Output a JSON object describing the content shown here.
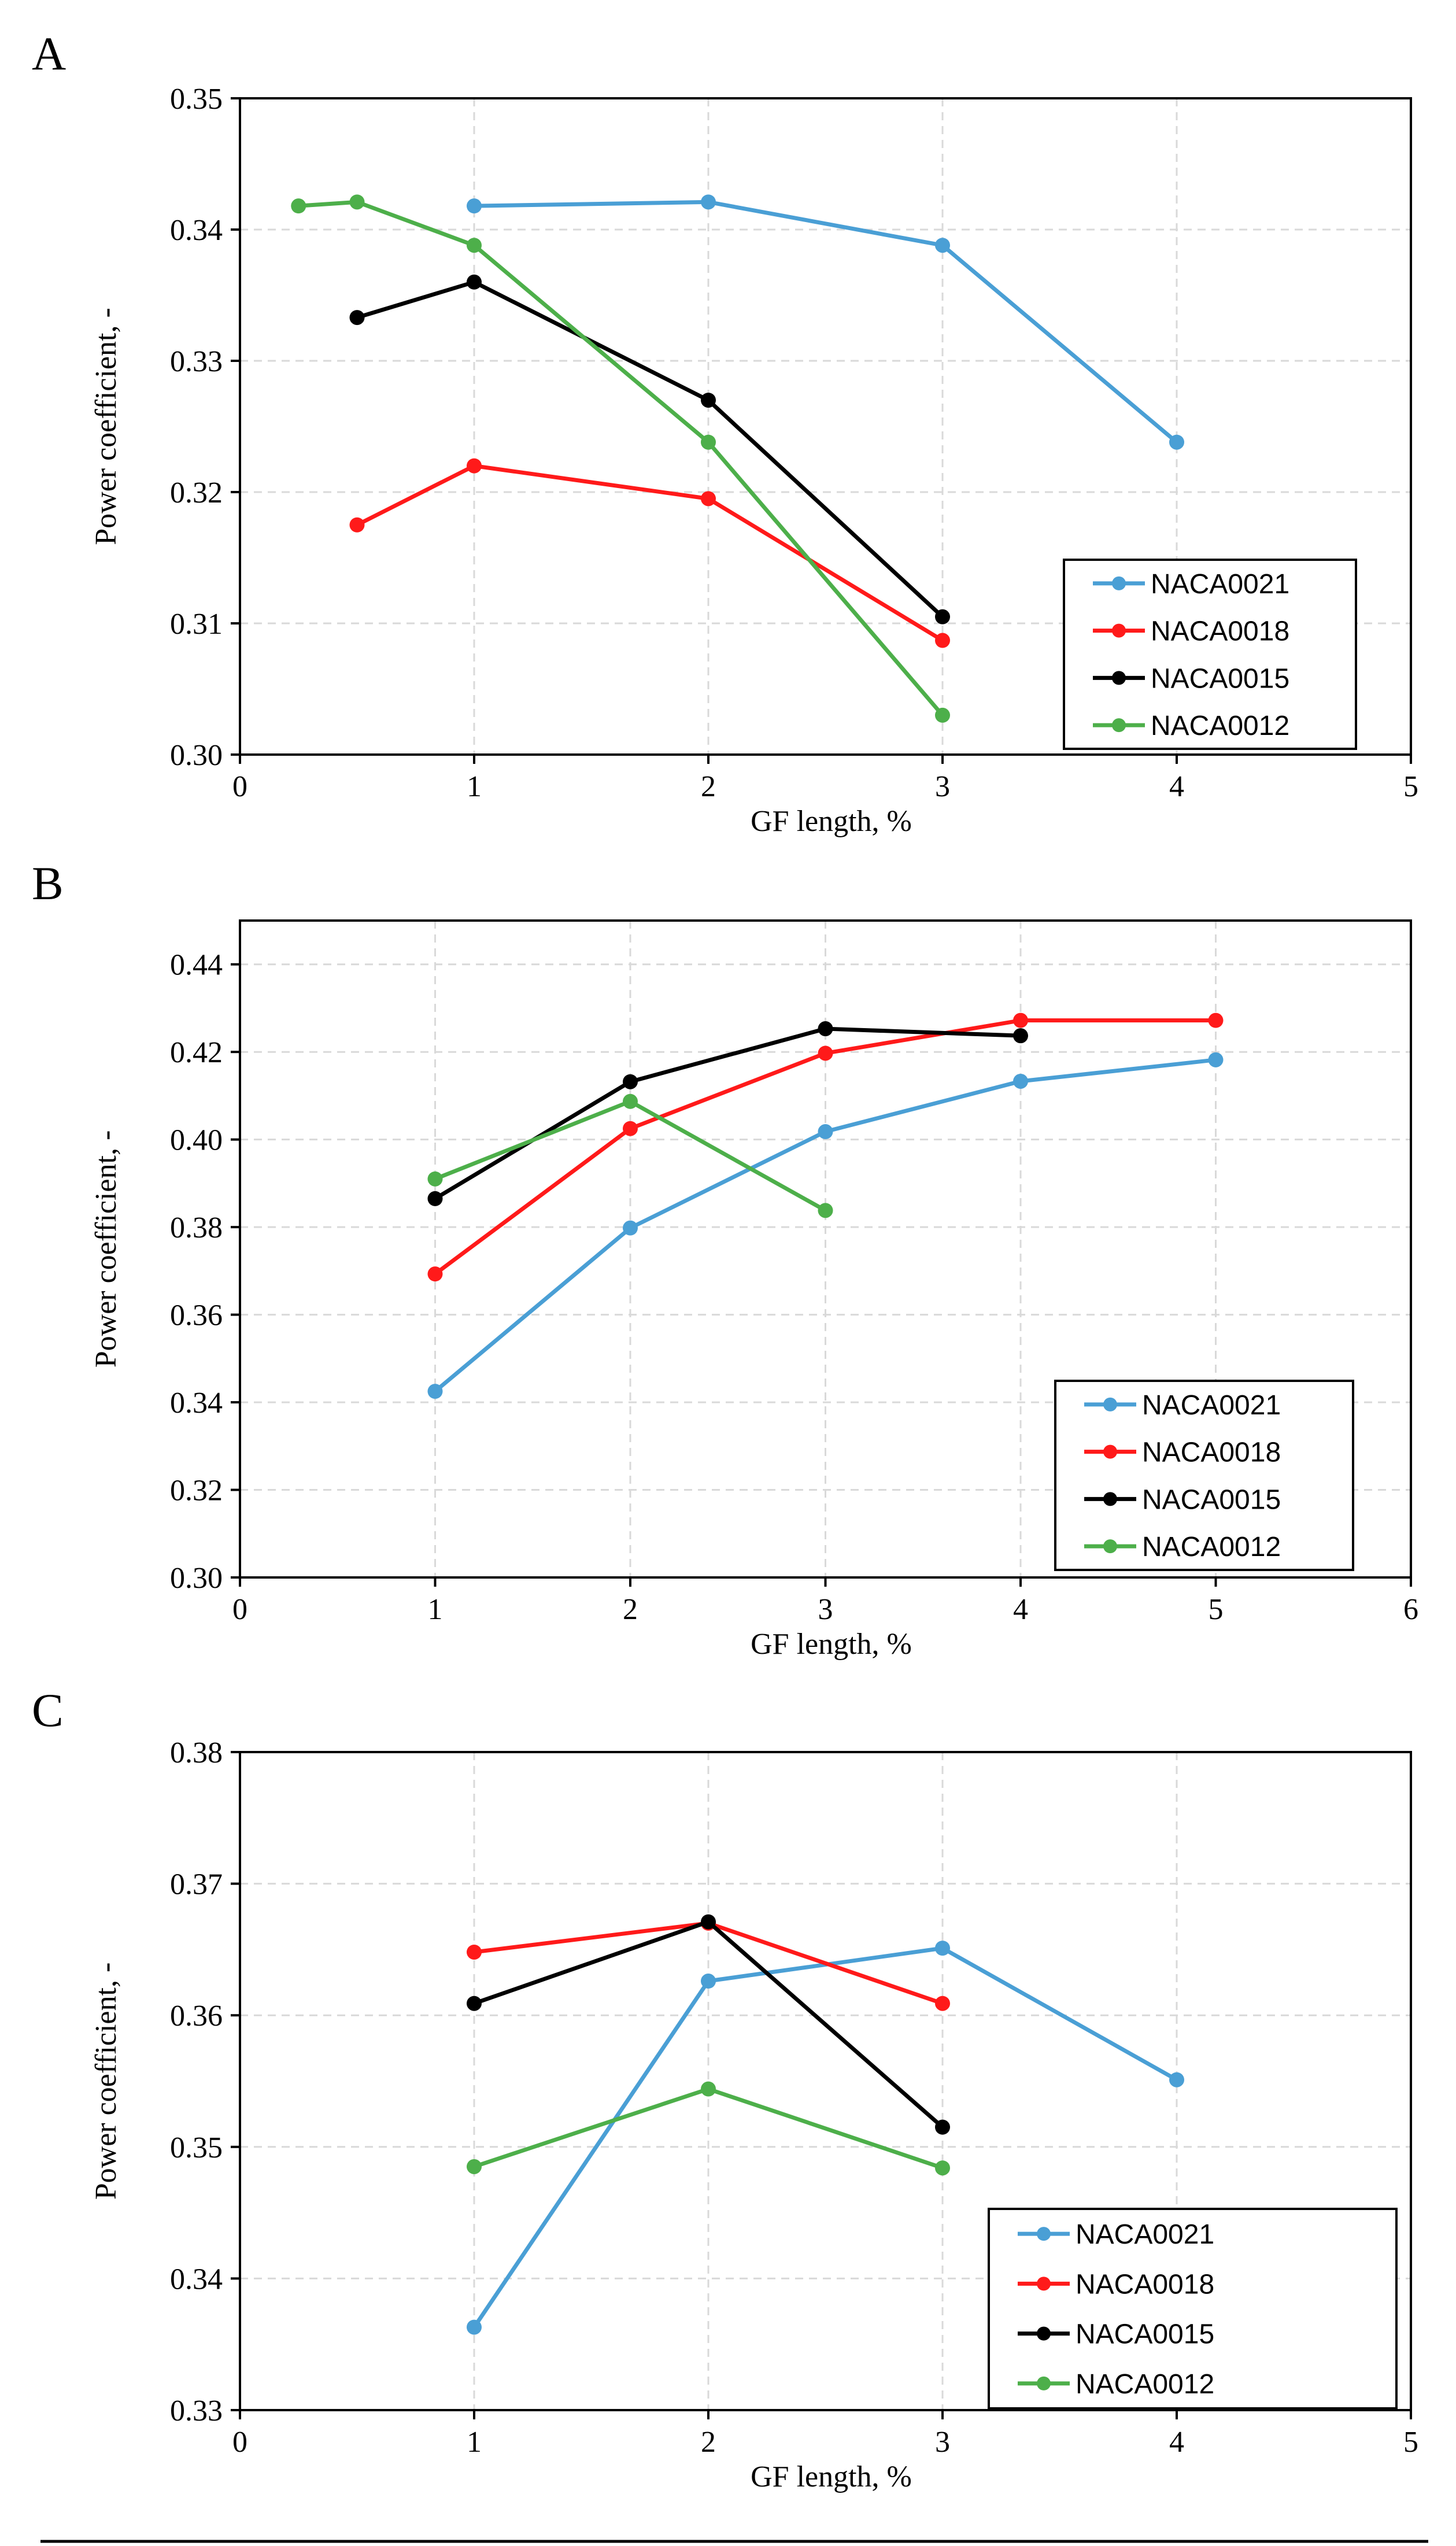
{
  "colors": {
    "NACA0021": "#4a9fd5",
    "NACA0018": "#ff1a1a",
    "NACA0015": "#000000",
    "NACA0012": "#4daf4a",
    "grid": "#d9d9d9",
    "axis": "#000000"
  },
  "chart_data": [
    {
      "type": "line",
      "panel_label": "A",
      "title": "",
      "xlabel": "GF length, %",
      "ylabel": "Power coefficient, -",
      "xlim": [
        0,
        5
      ],
      "ylim": [
        0.3,
        0.35
      ],
      "x_ticks": [
        0,
        1,
        2,
        3,
        4,
        5
      ],
      "x_tick_labels": [
        "0",
        "1",
        "2",
        "3",
        "4",
        "5"
      ],
      "y_ticks": [
        0.3,
        0.31,
        0.32,
        0.33,
        0.34,
        0.35
      ],
      "y_tick_labels": [
        "0.30",
        "0.31",
        "0.32",
        "0.33",
        "0.34",
        "0.35"
      ],
      "grid": true,
      "legend_position": "bottom-right",
      "series": [
        {
          "name": "NACA0021",
          "x": [
            1,
            2,
            3,
            4
          ],
          "values": [
            0.3418,
            0.3421,
            0.3388,
            0.3238
          ]
        },
        {
          "name": "NACA0018",
          "x": [
            0.5,
            1,
            2,
            3
          ],
          "values": [
            0.3175,
            0.322,
            0.3195,
            0.3087
          ]
        },
        {
          "name": "NACA0015",
          "x": [
            0.5,
            1,
            2,
            3
          ],
          "values": [
            0.3333,
            0.336,
            0.327,
            0.3105
          ]
        },
        {
          "name": "NACA0012",
          "x": [
            0.25,
            0.5,
            1,
            2,
            3
          ],
          "values": [
            0.3418,
            0.3421,
            0.3388,
            0.3238,
            0.303
          ]
        }
      ]
    },
    {
      "type": "line",
      "panel_label": "B",
      "title": "",
      "xlabel": "GF length, %",
      "ylabel": "Power coefficient, -",
      "xlim": [
        0,
        6
      ],
      "ylim": [
        0.3,
        0.45
      ],
      "x_ticks": [
        0,
        1,
        2,
        3,
        4,
        5,
        6
      ],
      "x_tick_labels": [
        "0",
        "1",
        "2",
        "3",
        "4",
        "5",
        "6"
      ],
      "y_ticks": [
        0.3,
        0.32,
        0.34,
        0.36,
        0.38,
        0.4,
        0.42,
        0.44
      ],
      "y_tick_labels": [
        "0.30",
        "0.32",
        "0.34",
        "0.36",
        "0.38",
        "0.40",
        "0.42",
        "0.44"
      ],
      "grid": true,
      "legend_position": "bottom-right",
      "series": [
        {
          "name": "NACA0021",
          "x": [
            1,
            2,
            3,
            4,
            5
          ],
          "values": [
            0.3425,
            0.3798,
            0.4018,
            0.4133,
            0.4182
          ]
        },
        {
          "name": "NACA0018",
          "x": [
            1,
            2,
            3,
            4,
            5
          ],
          "values": [
            0.3693,
            0.4025,
            0.4197,
            0.4272,
            0.4272
          ]
        },
        {
          "name": "NACA0015",
          "x": [
            1,
            2,
            3,
            4
          ],
          "values": [
            0.3865,
            0.4132,
            0.4253,
            0.4237
          ]
        },
        {
          "name": "NACA0012",
          "x": [
            1,
            2,
            3
          ],
          "values": [
            0.391,
            0.4087,
            0.3838
          ]
        }
      ]
    },
    {
      "type": "line",
      "panel_label": "C",
      "title": "",
      "xlabel": "GF length, %",
      "ylabel": "Power coefficient, -",
      "xlim": [
        0,
        5
      ],
      "ylim": [
        0.33,
        0.38
      ],
      "x_ticks": [
        0,
        1,
        2,
        3,
        4,
        5
      ],
      "x_tick_labels": [
        "0",
        "1",
        "2",
        "3",
        "4",
        "5"
      ],
      "y_ticks": [
        0.33,
        0.34,
        0.35,
        0.36,
        0.37,
        0.38
      ],
      "y_tick_labels": [
        "0.33",
        "0.34",
        "0.35",
        "0.36",
        "0.37",
        "0.38"
      ],
      "grid": true,
      "legend_position": "bottom-right",
      "series": [
        {
          "name": "NACA0021",
          "x": [
            1,
            2,
            3,
            4
          ],
          "values": [
            0.3363,
            0.3626,
            0.3651,
            0.3551
          ]
        },
        {
          "name": "NACA0018",
          "x": [
            1,
            2,
            3
          ],
          "values": [
            0.3648,
            0.367,
            0.3609
          ]
        },
        {
          "name": "NACA0015",
          "x": [
            1,
            2,
            3
          ],
          "values": [
            0.3609,
            0.3671,
            0.3515
          ]
        },
        {
          "name": "NACA0012",
          "x": [
            1,
            2,
            3
          ],
          "values": [
            0.3485,
            0.3544,
            0.3484
          ]
        }
      ]
    }
  ]
}
